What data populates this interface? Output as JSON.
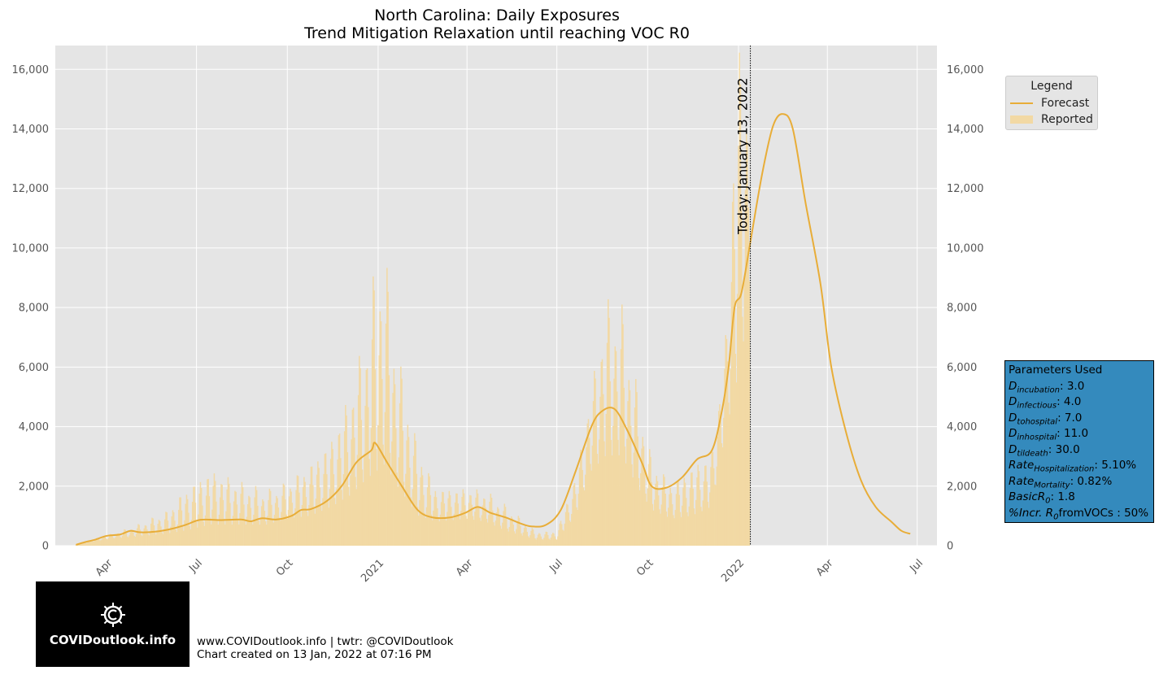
{
  "chart_data": {
    "type": "bar",
    "title": "North Carolina: Daily Exposures",
    "subtitle": "Trend Mitigation Relaxation until reaching VOC R0",
    "ylim": [
      0,
      16800
    ],
    "y_ticks": [
      0,
      2000,
      4000,
      6000,
      8000,
      10000,
      12000,
      14000,
      16000
    ],
    "y_tick_labels": [
      "0",
      "2,000",
      "4,000",
      "6,000",
      "8,000",
      "10,000",
      "12,000",
      "14,000",
      "16,000"
    ],
    "x_range": [
      "2020-02-09",
      "2022-07-21"
    ],
    "x_ticks": [
      "2020-04-01",
      "2020-07-01",
      "2020-10-01",
      "2021-01-01",
      "2021-04-01",
      "2021-07-01",
      "2021-10-01",
      "2022-01-01",
      "2022-04-01",
      "2022-07-01"
    ],
    "x_tick_labels": [
      "Apr",
      "Jul",
      "Oct",
      "2021",
      "Apr",
      "Jul",
      "Oct",
      "2022",
      "Apr",
      "Jul"
    ],
    "grid": true,
    "today_date": "2022-01-13",
    "today_label": "Today: January 13, 2022",
    "legend": {
      "title": "Legend",
      "placement": "right",
      "entries": [
        "Forecast",
        "Reported"
      ]
    },
    "series": [
      {
        "name": "Forecast",
        "kind": "line",
        "color": "#e8ad38",
        "points": [
          [
            "2020-03-01",
            30
          ],
          [
            "2020-03-10",
            120
          ],
          [
            "2020-03-20",
            200
          ],
          [
            "2020-04-01",
            330
          ],
          [
            "2020-04-15",
            380
          ],
          [
            "2020-04-25",
            500
          ],
          [
            "2020-05-05",
            450
          ],
          [
            "2020-05-20",
            470
          ],
          [
            "2020-06-05",
            560
          ],
          [
            "2020-06-20",
            700
          ],
          [
            "2020-07-05",
            870
          ],
          [
            "2020-07-25",
            860
          ],
          [
            "2020-08-15",
            880
          ],
          [
            "2020-08-25",
            820
          ],
          [
            "2020-09-05",
            920
          ],
          [
            "2020-09-20",
            880
          ],
          [
            "2020-10-05",
            1000
          ],
          [
            "2020-10-15",
            1200
          ],
          [
            "2020-10-25",
            1230
          ],
          [
            "2020-11-10",
            1500
          ],
          [
            "2020-11-25",
            2000
          ],
          [
            "2020-12-10",
            2800
          ],
          [
            "2020-12-25",
            3200
          ],
          [
            "2020-12-29",
            3450
          ],
          [
            "2021-01-10",
            2800
          ],
          [
            "2021-01-25",
            2000
          ],
          [
            "2021-02-10",
            1200
          ],
          [
            "2021-02-25",
            950
          ],
          [
            "2021-03-15",
            950
          ],
          [
            "2021-03-30",
            1100
          ],
          [
            "2021-04-12",
            1300
          ],
          [
            "2021-04-25",
            1100
          ],
          [
            "2021-05-10",
            950
          ],
          [
            "2021-05-25",
            750
          ],
          [
            "2021-06-05",
            650
          ],
          [
            "2021-06-20",
            700
          ],
          [
            "2021-07-05",
            1200
          ],
          [
            "2021-07-20",
            2500
          ],
          [
            "2021-08-05",
            4000
          ],
          [
            "2021-08-15",
            4500
          ],
          [
            "2021-08-28",
            4600
          ],
          [
            "2021-09-10",
            3900
          ],
          [
            "2021-09-25",
            2800
          ],
          [
            "2021-10-05",
            2000
          ],
          [
            "2021-10-20",
            1950
          ],
          [
            "2021-11-05",
            2300
          ],
          [
            "2021-11-20",
            2900
          ],
          [
            "2021-12-05",
            3200
          ],
          [
            "2021-12-15",
            4500
          ],
          [
            "2021-12-22",
            6000
          ],
          [
            "2021-12-28",
            8000
          ],
          [
            "2022-01-04",
            8500
          ],
          [
            "2022-01-13",
            10200
          ],
          [
            "2022-01-25",
            12500
          ],
          [
            "2022-02-05",
            14100
          ],
          [
            "2022-02-15",
            14500
          ],
          [
            "2022-02-25",
            14000
          ],
          [
            "2022-03-10",
            11500
          ],
          [
            "2022-03-25",
            8800
          ],
          [
            "2022-04-05",
            6000
          ],
          [
            "2022-04-20",
            3800
          ],
          [
            "2022-05-05",
            2200
          ],
          [
            "2022-05-20",
            1300
          ],
          [
            "2022-06-05",
            800
          ],
          [
            "2022-06-15",
            500
          ],
          [
            "2022-06-24",
            400
          ]
        ]
      },
      {
        "name": "Reported",
        "kind": "bar",
        "color": "#f2d9a4",
        "daily_range": [
          "2020-03-01",
          "2022-01-12"
        ],
        "envelope": [
          [
            "2020-03-01",
            40,
            20
          ],
          [
            "2020-03-20",
            250,
            150
          ],
          [
            "2020-04-10",
            450,
            250
          ],
          [
            "2020-05-01",
            700,
            300
          ],
          [
            "2020-06-01",
            1200,
            400
          ],
          [
            "2020-06-20",
            2000,
            500
          ],
          [
            "2020-07-15",
            2700,
            700
          ],
          [
            "2020-08-15",
            2200,
            700
          ],
          [
            "2020-09-10",
            1900,
            700
          ],
          [
            "2020-10-01",
            2200,
            900
          ],
          [
            "2020-10-25",
            2900,
            1000
          ],
          [
            "2020-11-15",
            3800,
            1300
          ],
          [
            "2020-12-05",
            5500,
            1700
          ],
          [
            "2020-12-20",
            7500,
            2200
          ],
          [
            "2021-01-01",
            10400,
            2500
          ],
          [
            "2021-01-08",
            10000,
            2700
          ],
          [
            "2021-01-20",
            6800,
            2000
          ],
          [
            "2021-02-10",
            3500,
            1000
          ],
          [
            "2021-03-01",
            2000,
            800
          ],
          [
            "2021-04-01",
            2000,
            900
          ],
          [
            "2021-04-20",
            1900,
            800
          ],
          [
            "2021-05-10",
            1400,
            500
          ],
          [
            "2021-06-10",
            500,
            200
          ],
          [
            "2021-07-01",
            500,
            200
          ],
          [
            "2021-07-20",
            2500,
            1000
          ],
          [
            "2021-08-05",
            5500,
            2500
          ],
          [
            "2021-08-20",
            8500,
            3000
          ],
          [
            "2021-09-05",
            8200,
            3000
          ],
          [
            "2021-09-20",
            5500,
            2000
          ],
          [
            "2021-10-05",
            3000,
            1200
          ],
          [
            "2021-10-25",
            2200,
            900
          ],
          [
            "2021-11-15",
            2800,
            1000
          ],
          [
            "2021-12-05",
            3300,
            1300
          ],
          [
            "2021-12-20",
            7500,
            4000
          ],
          [
            "2021-12-28",
            16800,
            5000
          ],
          [
            "2022-01-12",
            16800,
            8000
          ]
        ]
      }
    ]
  },
  "parameters": {
    "title": "Parameters Used",
    "lines": [
      {
        "sym": "D",
        "sub": "incubation",
        "value": ": 3.0"
      },
      {
        "sym": "D",
        "sub": "infectious",
        "value": ": 4.0"
      },
      {
        "sym": "D",
        "sub": "tohospital",
        "value": ": 7.0"
      },
      {
        "sym": "D",
        "sub": "inhospital",
        "value": ": 11.0"
      },
      {
        "sym": "D",
        "sub": "tildeath",
        "value": ": 30.0"
      },
      {
        "sym": "Rate",
        "sub": "Hospitalization",
        "value": ": 5.10%"
      },
      {
        "sym": "Rate",
        "sub": "Mortality",
        "value": ": 0.82%"
      },
      {
        "sym": "BasicR",
        "sub": "0",
        "value": ": 1.8"
      },
      {
        "sym": "%Incr. R",
        "sub": "0",
        "value": "fromVOCs : 50%"
      }
    ]
  },
  "footer": {
    "line1": "www.COVIDoutlook.info | twtr: @COVIDoutlook",
    "line2": "Chart created on 13 Jan, 2022 at 07:16 PM"
  },
  "logo": {
    "text": "COVIDoutlook.info",
    "icon": "virus-icon"
  }
}
